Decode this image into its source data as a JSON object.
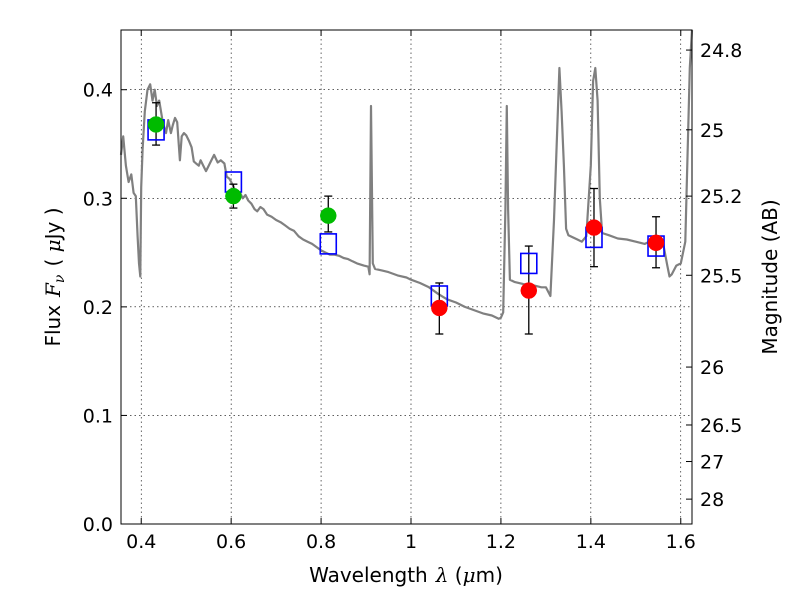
{
  "chart_data": {
    "type": "scatter",
    "xlabel_prefix": "Wavelength",
    "xlabel_math": "λ",
    "xlabel_unit_open": " (",
    "xlabel_unit_math": "μ",
    "xlabel_unit_rest": "m)",
    "ylabel_prefix": "Flux",
    "ylabel_math": "F",
    "ylabel_math_sub": "ν",
    "ylabel_unit_open": "( ",
    "ylabel_unit_math": "μ",
    "ylabel_unit_rest": "Jy )",
    "y2label": "Magnitude (AB)",
    "xlim": [
      0.355,
      1.625
    ],
    "ylim": [
      0.0,
      0.455
    ],
    "grid": true,
    "x_ticks": [
      {
        "value": 0.4,
        "label": "0.4"
      },
      {
        "value": 0.6,
        "label": "0.6"
      },
      {
        "value": 0.8,
        "label": "0.8"
      },
      {
        "value": 1.0,
        "label": "1"
      },
      {
        "value": 1.2,
        "label": "1.2"
      },
      {
        "value": 1.4,
        "label": "1.4"
      },
      {
        "value": 1.6,
        "label": "1.6"
      }
    ],
    "y_ticks": [
      {
        "value": 0.0,
        "label": "0.0"
      },
      {
        "value": 0.1,
        "label": "0.1"
      },
      {
        "value": 0.2,
        "label": "0.2"
      },
      {
        "value": 0.3,
        "label": "0.3"
      },
      {
        "value": 0.4,
        "label": "0.4"
      }
    ],
    "y2_ticks": [
      {
        "value": 24.8,
        "label": "24.8"
      },
      {
        "value": 25.0,
        "label": "25"
      },
      {
        "value": 25.2,
        "label": "25.2"
      },
      {
        "value": 25.5,
        "label": "25.5"
      },
      {
        "value": 26.0,
        "label": "26"
      },
      {
        "value": 26.5,
        "label": "26.5"
      },
      {
        "value": 27.0,
        "label": "27"
      },
      {
        "value": 28.0,
        "label": "28"
      }
    ],
    "model_spectrum": {
      "color": "#808080",
      "points": [
        [
          0.355,
          0.34
        ],
        [
          0.36,
          0.357
        ],
        [
          0.366,
          0.33
        ],
        [
          0.372,
          0.315
        ],
        [
          0.378,
          0.322
        ],
        [
          0.383,
          0.305
        ],
        [
          0.388,
          0.302
        ],
        [
          0.392,
          0.265
        ],
        [
          0.395,
          0.24
        ],
        [
          0.398,
          0.228
        ],
        [
          0.4,
          0.31
        ],
        [
          0.403,
          0.345
        ],
        [
          0.408,
          0.38
        ],
        [
          0.414,
          0.4
        ],
        [
          0.42,
          0.405
        ],
        [
          0.425,
          0.39
        ],
        [
          0.43,
          0.4
        ],
        [
          0.435,
          0.385
        ],
        [
          0.44,
          0.39
        ],
        [
          0.448,
          0.37
        ],
        [
          0.455,
          0.36
        ],
        [
          0.46,
          0.372
        ],
        [
          0.466,
          0.36
        ],
        [
          0.47,
          0.367
        ],
        [
          0.475,
          0.374
        ],
        [
          0.48,
          0.37
        ],
        [
          0.486,
          0.335
        ],
        [
          0.49,
          0.357
        ],
        [
          0.495,
          0.36
        ],
        [
          0.5,
          0.358
        ],
        [
          0.506,
          0.353
        ],
        [
          0.512,
          0.347
        ],
        [
          0.517,
          0.334
        ],
        [
          0.522,
          0.332
        ],
        [
          0.528,
          0.33
        ],
        [
          0.532,
          0.335
        ],
        [
          0.538,
          0.33
        ],
        [
          0.544,
          0.325
        ],
        [
          0.55,
          0.33
        ],
        [
          0.556,
          0.335
        ],
        [
          0.562,
          0.34
        ],
        [
          0.57,
          0.333
        ],
        [
          0.577,
          0.335
        ],
        [
          0.585,
          0.332
        ],
        [
          0.59,
          0.32
        ],
        [
          0.596,
          0.318
        ],
        [
          0.6,
          0.315
        ],
        [
          0.606,
          0.31
        ],
        [
          0.61,
          0.305
        ],
        [
          0.615,
          0.302
        ],
        [
          0.62,
          0.305
        ],
        [
          0.626,
          0.3
        ],
        [
          0.632,
          0.303
        ],
        [
          0.638,
          0.298
        ],
        [
          0.645,
          0.295
        ],
        [
          0.652,
          0.29
        ],
        [
          0.658,
          0.288
        ],
        [
          0.665,
          0.292
        ],
        [
          0.672,
          0.29
        ],
        [
          0.68,
          0.285
        ],
        [
          0.69,
          0.283
        ],
        [
          0.7,
          0.28
        ],
        [
          0.71,
          0.278
        ],
        [
          0.72,
          0.275
        ],
        [
          0.73,
          0.272
        ],
        [
          0.74,
          0.27
        ],
        [
          0.75,
          0.265
        ],
        [
          0.76,
          0.262
        ],
        [
          0.77,
          0.26
        ],
        [
          0.78,
          0.258
        ],
        [
          0.79,
          0.255
        ],
        [
          0.8,
          0.252
        ],
        [
          0.81,
          0.25
        ],
        [
          0.82,
          0.248
        ],
        [
          0.83,
          0.248
        ],
        [
          0.84,
          0.247
        ],
        [
          0.85,
          0.245
        ],
        [
          0.86,
          0.244
        ],
        [
          0.87,
          0.242
        ],
        [
          0.88,
          0.24
        ],
        [
          0.895,
          0.238
        ],
        [
          0.905,
          0.237
        ],
        [
          0.908,
          0.23
        ],
        [
          0.911,
          0.385
        ],
        [
          0.915,
          0.24
        ],
        [
          0.92,
          0.235
        ],
        [
          0.93,
          0.234
        ],
        [
          0.95,
          0.232
        ],
        [
          0.97,
          0.229
        ],
        [
          0.99,
          0.227
        ],
        [
          1.0,
          0.225
        ],
        [
          1.02,
          0.222
        ],
        [
          1.04,
          0.218
        ],
        [
          1.06,
          0.212
        ],
        [
          1.08,
          0.207
        ],
        [
          1.1,
          0.204
        ],
        [
          1.12,
          0.2
        ],
        [
          1.14,
          0.197
        ],
        [
          1.16,
          0.194
        ],
        [
          1.18,
          0.192
        ],
        [
          1.195,
          0.189
        ],
        [
          1.2,
          0.19
        ],
        [
          1.205,
          0.195
        ],
        [
          1.21,
          0.29
        ],
        [
          1.213,
          0.385
        ],
        [
          1.216,
          0.29
        ],
        [
          1.22,
          0.225
        ],
        [
          1.23,
          0.223
        ],
        [
          1.25,
          0.221
        ],
        [
          1.27,
          0.22
        ],
        [
          1.29,
          0.218
        ],
        [
          1.3,
          0.218
        ],
        [
          1.31,
          0.21
        ],
        [
          1.318,
          0.28
        ],
        [
          1.325,
          0.36
        ],
        [
          1.33,
          0.42
        ],
        [
          1.335,
          0.38
        ],
        [
          1.34,
          0.33
        ],
        [
          1.345,
          0.272
        ],
        [
          1.35,
          0.266
        ],
        [
          1.36,
          0.264
        ],
        [
          1.37,
          0.262
        ],
        [
          1.38,
          0.26
        ],
        [
          1.39,
          0.265
        ],
        [
          1.4,
          0.33
        ],
        [
          1.405,
          0.408
        ],
        [
          1.41,
          0.42
        ],
        [
          1.415,
          0.39
        ],
        [
          1.42,
          0.3
        ],
        [
          1.425,
          0.268
        ],
        [
          1.44,
          0.266
        ],
        [
          1.46,
          0.263
        ],
        [
          1.48,
          0.262
        ],
        [
          1.5,
          0.26
        ],
        [
          1.52,
          0.258
        ],
        [
          1.54,
          0.262
        ],
        [
          1.56,
          0.26
        ],
        [
          1.57,
          0.238
        ],
        [
          1.575,
          0.228
        ],
        [
          1.58,
          0.23
        ],
        [
          1.59,
          0.238
        ],
        [
          1.6,
          0.24
        ],
        [
          1.61,
          0.26
        ],
        [
          1.62,
          0.42
        ],
        [
          1.625,
          0.46
        ]
      ]
    },
    "series": [
      {
        "marker": "open-square",
        "color": "#0000ff",
        "points": [
          [
            0.433,
            0.363
          ],
          [
            0.605,
            0.315
          ],
          [
            0.816,
            0.258
          ],
          [
            1.063,
            0.21
          ],
          [
            1.262,
            0.24
          ],
          [
            1.407,
            0.264
          ],
          [
            1.545,
            0.256
          ]
        ]
      },
      {
        "marker": "filled-circle",
        "color": "#00bb00",
        "points": [
          [
            0.433,
            0.368
          ],
          [
            0.605,
            0.302
          ],
          [
            0.816,
            0.284
          ]
        ]
      },
      {
        "marker": "filled-circle",
        "color": "#ff0000",
        "points": [
          [
            1.063,
            0.199
          ],
          [
            1.262,
            0.215
          ],
          [
            1.407,
            0.273
          ],
          [
            1.545,
            0.259
          ]
        ]
      }
    ],
    "error_bars": [
      {
        "x": 0.433,
        "low": 0.349,
        "high": 0.388
      },
      {
        "x": 0.605,
        "low": 0.291,
        "high": 0.313
      },
      {
        "x": 0.816,
        "low": 0.269,
        "high": 0.302
      },
      {
        "x": 1.063,
        "low": 0.175,
        "high": 0.222
      },
      {
        "x": 1.262,
        "low": 0.175,
        "high": 0.256
      },
      {
        "x": 1.407,
        "low": 0.237,
        "high": 0.309
      },
      {
        "x": 1.545,
        "low": 0.236,
        "high": 0.283
      }
    ]
  }
}
